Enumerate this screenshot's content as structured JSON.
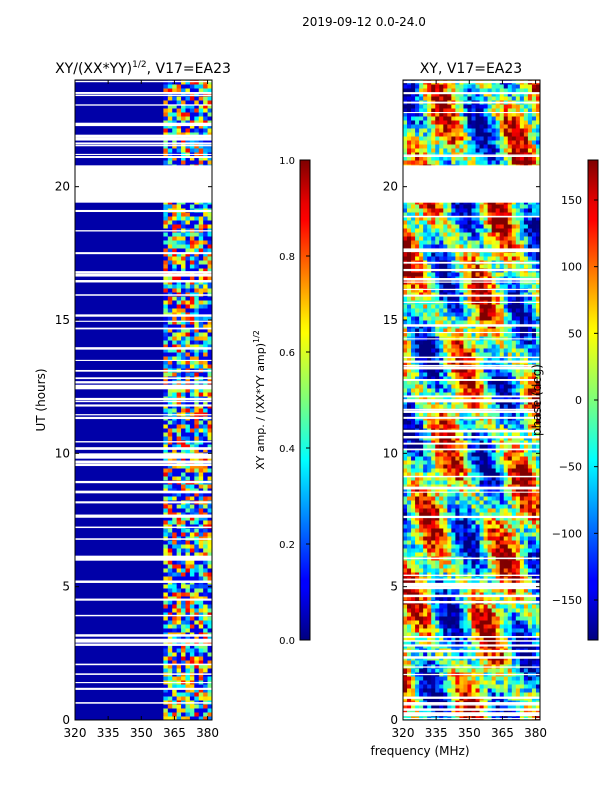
{
  "figure_title": "2019-09-12 0.0-24.0",
  "x_label_shared": "frequency (MHz)",
  "chart_data": [
    {
      "type": "heatmap",
      "title_main": "XY/(XX*YY)",
      "title_sup": "1/2",
      "title_suffix": ", V17=EA23",
      "xlabel": "",
      "ylabel": "UT (hours)",
      "xlim": [
        320,
        382
      ],
      "ylim": [
        0,
        24
      ],
      "x_ticks": [
        320,
        335,
        350,
        365,
        380
      ],
      "y_ticks": [
        0,
        5,
        10,
        15,
        20
      ],
      "colormap": "jet",
      "colorbar": {
        "label_main": "XY amp. / (XX*YY amp)",
        "label_sup": "1/2",
        "range": [
          0.0,
          1.0
        ],
        "ticks": [
          0.0,
          0.2,
          0.4,
          0.6,
          0.8,
          1.0
        ],
        "tick_labels": [
          "0.0",
          "0.2",
          "0.4",
          "0.6",
          "0.8",
          "1.0"
        ]
      },
      "data_gaps_hours": [
        [
          19.4,
          20.8
        ],
        [
          9.8,
          10.0
        ],
        [
          8.5,
          8.6
        ]
      ],
      "active_band_mhz": [
        361,
        382
      ]
    },
    {
      "type": "heatmap",
      "title_main": "XY, V17=EA23",
      "xlabel": "frequency (MHz)",
      "ylabel": "",
      "xlim": [
        320,
        382
      ],
      "ylim": [
        0,
        24
      ],
      "x_ticks": [
        320,
        335,
        350,
        365,
        380
      ],
      "y_ticks": [
        0,
        5,
        10,
        15,
        20
      ],
      "colormap": "jet",
      "colorbar": {
        "label_main": "phase (deg)",
        "range": [
          -180,
          180
        ],
        "ticks": [
          -150,
          -100,
          -50,
          0,
          50,
          100,
          150
        ],
        "tick_labels": [
          "−150",
          "−100",
          "−50",
          "0",
          "50",
          "100",
          "150"
        ]
      },
      "data_gaps_hours": [
        [
          19.4,
          20.8
        ]
      ]
    }
  ]
}
